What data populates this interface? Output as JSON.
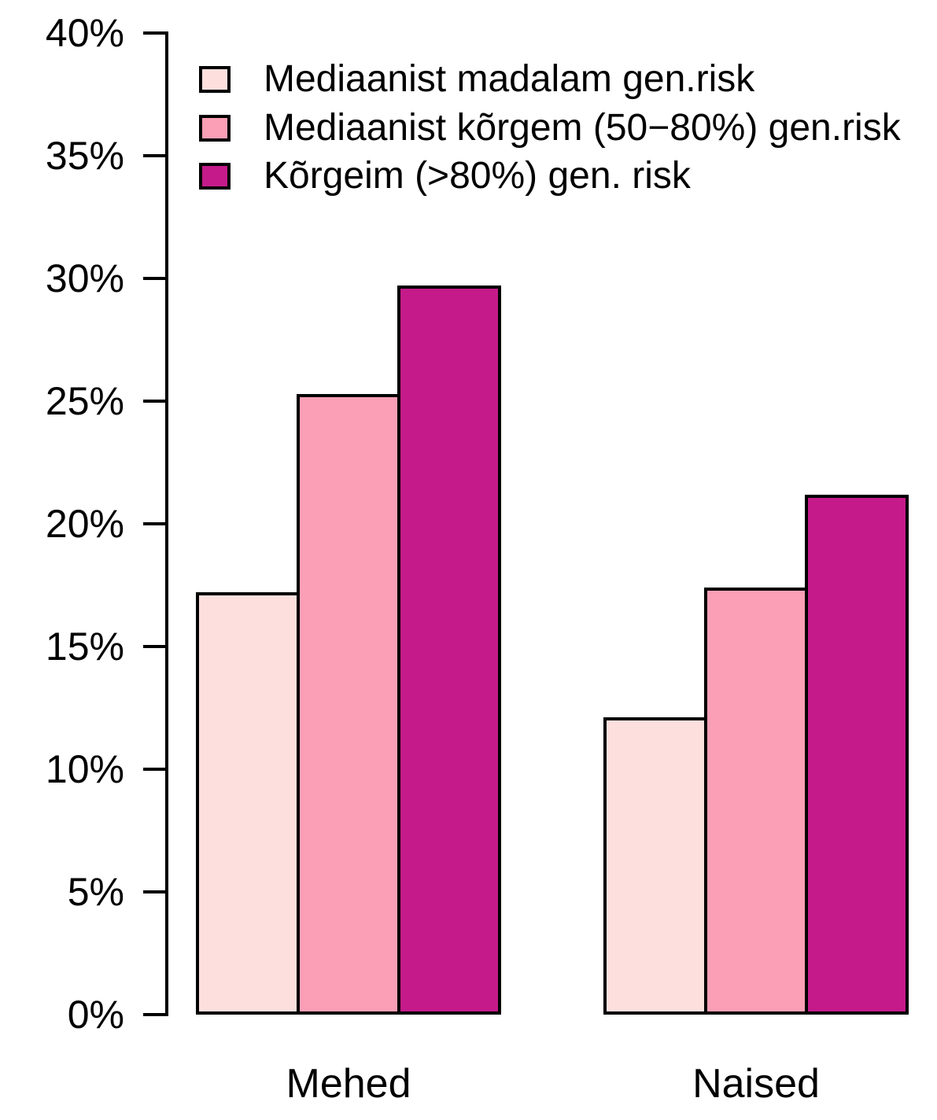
{
  "chart_data": {
    "type": "bar",
    "categories": [
      "Mehed",
      "Naised"
    ],
    "series": [
      {
        "name": "Mediaanist madalam gen.risk",
        "color": "#FDE0DD",
        "values": [
          17.2,
          12.1
        ]
      },
      {
        "name": "Mediaanist kõrgem (50−80%) gen.risk",
        "color": "#FA9FB5",
        "values": [
          25.3,
          17.4
        ]
      },
      {
        "name": "Kõrgeim (>80%) gen. risk",
        "color": "#C51B8A",
        "values": [
          29.7,
          21.2
        ]
      }
    ],
    "title": "",
    "xlabel": "",
    "ylabel": "",
    "ylim": [
      0,
      40
    ],
    "yticks": [
      0,
      5,
      10,
      15,
      20,
      25,
      30,
      35,
      40
    ],
    "ytick_labels": [
      "0%",
      "5%",
      "10%",
      "15%",
      "20%",
      "25%",
      "30%",
      "35%",
      "40%"
    ],
    "grid": false,
    "legend_position": "top-left",
    "bar_border_color": "#000000",
    "axis_color": "#000000"
  }
}
